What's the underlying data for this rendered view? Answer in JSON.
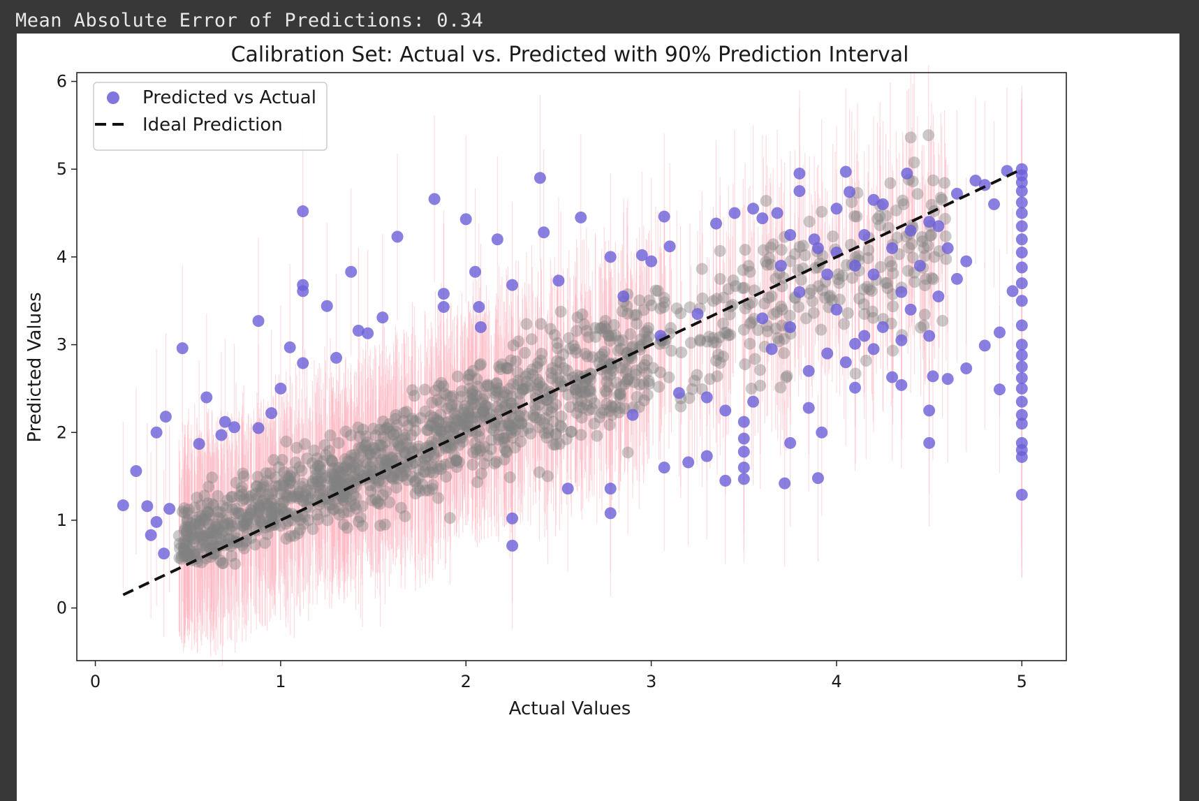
{
  "output": {
    "text": "Mean Absolute Error of Predictions: 0.34"
  },
  "chart_data": {
    "type": "scatter",
    "title": "Calibration Set: Actual vs. Predicted with 90% Prediction Interval",
    "xlabel": "Actual Values",
    "ylabel": "Predicted Values",
    "xlim": [
      -0.1,
      5.24
    ],
    "ylim": [
      -0.6,
      6.1
    ],
    "xticks": [
      0,
      1,
      2,
      3,
      4,
      5
    ],
    "yticks": [
      0,
      1,
      2,
      3,
      4,
      5,
      6
    ],
    "grid": false,
    "legend_position": "top-left",
    "colors": {
      "scatter": "#6a5fd8",
      "overlap": "#808080",
      "error_bars": "#ffb6c1",
      "ideal_line": "#111111"
    },
    "series": [
      {
        "name": "Predicted vs Actual",
        "kind": "scatter",
        "interval": "90%",
        "points": [
          [
            0.15,
            1.17
          ],
          [
            0.22,
            1.56
          ],
          [
            0.28,
            1.16
          ],
          [
            0.3,
            0.83
          ],
          [
            0.33,
            2.0
          ],
          [
            0.33,
            0.98
          ],
          [
            0.37,
            0.62
          ],
          [
            0.38,
            2.18
          ],
          [
            0.4,
            1.13
          ],
          [
            0.47,
            2.96
          ],
          [
            0.56,
            1.87
          ],
          [
            0.6,
            2.4
          ],
          [
            0.68,
            1.97
          ],
          [
            0.7,
            2.12
          ],
          [
            0.75,
            2.06
          ],
          [
            0.88,
            3.27
          ],
          [
            0.88,
            2.05
          ],
          [
            0.95,
            2.22
          ],
          [
            1.0,
            2.5
          ],
          [
            1.05,
            2.97
          ],
          [
            1.12,
            4.52
          ],
          [
            1.12,
            3.68
          ],
          [
            1.12,
            3.61
          ],
          [
            1.12,
            2.79
          ],
          [
            1.25,
            3.44
          ],
          [
            1.3,
            2.85
          ],
          [
            1.38,
            3.83
          ],
          [
            1.42,
            3.16
          ],
          [
            1.47,
            3.13
          ],
          [
            1.55,
            3.31
          ],
          [
            1.63,
            4.23
          ],
          [
            1.83,
            4.66
          ],
          [
            1.88,
            3.58
          ],
          [
            1.88,
            3.43
          ],
          [
            2.0,
            4.43
          ],
          [
            2.05,
            3.83
          ],
          [
            2.07,
            3.43
          ],
          [
            2.08,
            3.2
          ],
          [
            2.17,
            4.2
          ],
          [
            2.25,
            3.68
          ],
          [
            2.4,
            4.9
          ],
          [
            2.42,
            4.28
          ],
          [
            2.5,
            3.73
          ],
          [
            2.55,
            1.36
          ],
          [
            2.62,
            4.45
          ],
          [
            2.78,
            1.08
          ],
          [
            2.78,
            1.36
          ],
          [
            2.25,
            1.02
          ],
          [
            2.25,
            0.71
          ],
          [
            2.78,
            4.0
          ],
          [
            3.0,
            3.95
          ],
          [
            3.07,
            4.46
          ],
          [
            3.07,
            1.6
          ],
          [
            3.2,
            1.66
          ],
          [
            3.3,
            1.73
          ],
          [
            3.35,
            4.38
          ],
          [
            3.4,
            1.45
          ],
          [
            3.45,
            4.5
          ],
          [
            3.5,
            2.12
          ],
          [
            3.5,
            1.93
          ],
          [
            3.5,
            1.78
          ],
          [
            3.5,
            1.6
          ],
          [
            3.5,
            1.47
          ],
          [
            3.55,
            4.55
          ],
          [
            3.6,
            4.44
          ],
          [
            3.68,
            4.5
          ],
          [
            3.72,
            1.42
          ],
          [
            3.75,
            1.88
          ],
          [
            3.8,
            4.95
          ],
          [
            3.8,
            4.75
          ],
          [
            3.85,
            2.28
          ],
          [
            3.9,
            1.48
          ],
          [
            3.92,
            2.0
          ],
          [
            4.0,
            4.55
          ],
          [
            4.05,
            4.97
          ],
          [
            4.07,
            4.74
          ],
          [
            4.1,
            2.51
          ],
          [
            4.1,
            3.01
          ],
          [
            4.2,
            4.65
          ],
          [
            4.25,
            4.6
          ],
          [
            4.3,
            2.63
          ],
          [
            4.35,
            2.54
          ],
          [
            4.38,
            4.95
          ],
          [
            4.5,
            4.4
          ],
          [
            4.5,
            3.1
          ],
          [
            4.5,
            2.25
          ],
          [
            4.5,
            1.88
          ],
          [
            4.52,
            2.64
          ],
          [
            4.6,
            2.61
          ],
          [
            4.7,
            2.73
          ],
          [
            4.75,
            4.87
          ],
          [
            4.8,
            2.99
          ],
          [
            4.85,
            4.6
          ],
          [
            4.88,
            3.14
          ],
          [
            4.88,
            2.49
          ],
          [
            4.92,
            4.98
          ],
          [
            4.95,
            3.61
          ],
          [
            4.8,
            4.82
          ],
          [
            4.65,
            4.72
          ],
          [
            4.4,
            4.3
          ],
          [
            4.3,
            4.1
          ],
          [
            4.2,
            3.8
          ],
          [
            4.15,
            4.25
          ],
          [
            4.6,
            4.1
          ],
          [
            4.45,
            3.9
          ],
          [
            4.7,
            3.95
          ],
          [
            4.55,
            4.35
          ],
          [
            4.35,
            3.6
          ],
          [
            4.1,
            3.9
          ],
          [
            4.0,
            3.4
          ],
          [
            3.95,
            3.8
          ],
          [
            3.9,
            4.1
          ],
          [
            3.8,
            3.6
          ],
          [
            3.7,
            3.9
          ],
          [
            3.6,
            3.3
          ],
          [
            4.25,
            3.2
          ],
          [
            4.4,
            3.4
          ],
          [
            4.55,
            3.55
          ],
          [
            4.65,
            3.75
          ],
          [
            4.15,
            3.1
          ],
          [
            3.65,
            2.95
          ],
          [
            3.75,
            3.2
          ],
          [
            3.85,
            2.7
          ],
          [
            3.95,
            2.9
          ],
          [
            4.05,
            2.8
          ],
          [
            4.2,
            2.95
          ],
          [
            4.35,
            3.05
          ],
          [
            4.0,
            4.05
          ],
          [
            3.88,
            4.2
          ],
          [
            3.75,
            4.25
          ],
          [
            5.0,
            1.29
          ],
          [
            5.0,
            1.72
          ],
          [
            5.0,
            1.8
          ],
          [
            5.0,
            1.88
          ],
          [
            5.0,
            2.1
          ],
          [
            5.0,
            2.2
          ],
          [
            5.0,
            2.35
          ],
          [
            5.0,
            2.5
          ],
          [
            5.0,
            2.62
          ],
          [
            5.0,
            2.75
          ],
          [
            5.0,
            2.88
          ],
          [
            5.0,
            3.0
          ],
          [
            5.0,
            3.22
          ],
          [
            5.0,
            3.5
          ],
          [
            5.0,
            3.7
          ],
          [
            5.0,
            3.88
          ],
          [
            5.0,
            4.05
          ],
          [
            5.0,
            4.2
          ],
          [
            5.0,
            4.35
          ],
          [
            5.0,
            4.5
          ],
          [
            5.0,
            4.62
          ],
          [
            5.0,
            4.75
          ],
          [
            5.0,
            4.85
          ],
          [
            5.0,
            4.93
          ],
          [
            5.0,
            5.0
          ],
          [
            3.1,
            4.12
          ],
          [
            3.15,
            2.45
          ],
          [
            3.25,
            3.35
          ],
          [
            3.3,
            2.4
          ],
          [
            2.95,
            4.02
          ],
          [
            2.85,
            3.55
          ],
          [
            2.9,
            2.2
          ],
          [
            3.05,
            3.1
          ],
          [
            3.4,
            2.25
          ],
          [
            3.55,
            2.35
          ]
        ],
        "cloud_trend": {
          "slope": 0.86,
          "intercept": 0.33
        },
        "interval_half_width": 0.95
      },
      {
        "name": "Ideal Prediction",
        "kind": "line",
        "style": "dashed",
        "x": [
          0.15,
          5.0
        ],
        "y": [
          0.15,
          5.0
        ]
      }
    ]
  }
}
